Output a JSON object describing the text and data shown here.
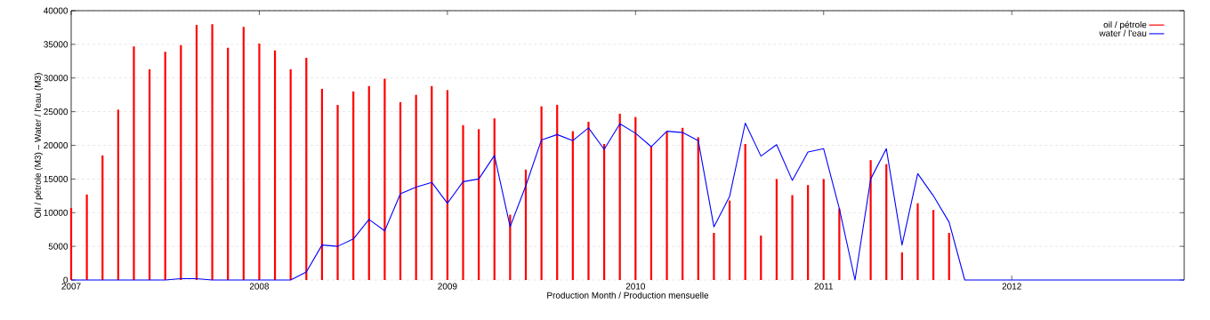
{
  "chart_data": {
    "type": "bar",
    "xlabel": "Production Month / Production mensuelle",
    "ylabel": "Oil / pétrole (M3)  –  Water / l'eau (M3)",
    "x": [
      "2007-01",
      "2007-02",
      "2007-03",
      "2007-04",
      "2007-05",
      "2007-06",
      "2007-07",
      "2007-08",
      "2007-09",
      "2007-10",
      "2007-11",
      "2007-12",
      "2008-01",
      "2008-02",
      "2008-03",
      "2008-04",
      "2008-05",
      "2008-06",
      "2008-07",
      "2008-08",
      "2008-09",
      "2008-10",
      "2008-11",
      "2008-12",
      "2009-01",
      "2009-02",
      "2009-03",
      "2009-04",
      "2009-05",
      "2009-06",
      "2009-07",
      "2009-08",
      "2009-09",
      "2009-10",
      "2009-11",
      "2009-12",
      "2010-01",
      "2010-02",
      "2010-03",
      "2010-04",
      "2010-05",
      "2010-06",
      "2010-07",
      "2010-08",
      "2010-09",
      "2010-10",
      "2010-11",
      "2010-12",
      "2011-01",
      "2011-02",
      "2011-03",
      "2011-04",
      "2011-05",
      "2011-06",
      "2011-07",
      "2011-08",
      "2011-09",
      "2011-10",
      "2011-11",
      "2011-12",
      "2012-01",
      "2012-02",
      "2012-03",
      "2012-04",
      "2012-05",
      "2012-06",
      "2012-07",
      "2012-08",
      "2012-09",
      "2012-10",
      "2012-11",
      "2012-12"
    ],
    "series": [
      {
        "name": "oil / pétrole",
        "color": "#ff0000",
        "x": [
          "2007-01",
          "2007-02",
          "2007-03",
          "2007-04",
          "2007-05",
          "2007-06",
          "2007-07",
          "2007-08",
          "2007-09",
          "2007-10",
          "2007-11",
          "2007-12",
          "2008-01",
          "2008-02",
          "2008-03",
          "2008-04",
          "2008-05",
          "2008-06",
          "2008-07",
          "2008-08",
          "2008-09",
          "2008-10",
          "2008-11",
          "2008-12",
          "2009-01",
          "2009-02",
          "2009-03",
          "2009-04",
          "2009-05",
          "2009-06",
          "2009-07",
          "2009-08",
          "2009-09",
          "2009-10",
          "2009-11",
          "2009-12",
          "2010-01",
          "2010-02",
          "2010-03",
          "2010-04",
          "2010-05",
          "2010-06",
          "2010-07",
          "2010-08",
          "2010-09",
          "2010-10",
          "2010-11",
          "2010-12",
          "2011-01",
          "2011-02",
          "2011-03",
          "2011-04",
          "2011-05",
          "2011-06",
          "2011-07",
          "2011-08",
          "2011-09"
        ],
        "values": [
          10700,
          12700,
          18500,
          25300,
          34700,
          31300,
          33900,
          34900,
          37900,
          38000,
          34500,
          37600,
          35100,
          34100,
          31300,
          33000,
          28400,
          26000,
          28000,
          28800,
          29900,
          26400,
          27500,
          28800,
          28200,
          23000,
          22400,
          24000,
          9700,
          16400,
          25800,
          26000,
          22100,
          23500,
          20200,
          24700,
          24200,
          19800,
          22000,
          22600,
          21200,
          7000,
          11800,
          20200,
          6600,
          15000,
          12600,
          14100,
          15000,
          10600,
          0,
          17800,
          17200,
          4100,
          11400,
          10400,
          7000
        ]
      },
      {
        "name": "water / l'eau",
        "type": "line",
        "color": "#0000ff",
        "values": [
          0,
          0,
          0,
          0,
          0,
          0,
          0,
          200,
          200,
          0,
          0,
          0,
          0,
          0,
          0,
          1200,
          5200,
          5000,
          6100,
          9000,
          7300,
          12800,
          13800,
          14500,
          11400,
          14600,
          15000,
          18500,
          7900,
          14000,
          20800,
          21600,
          20700,
          22600,
          19400,
          23200,
          21800,
          19800,
          22100,
          21900,
          20700,
          7900,
          12400,
          23300,
          18400,
          20100,
          14800,
          19000,
          19500,
          10600,
          0,
          15000,
          19500,
          5200,
          15800,
          12500,
          8600,
          0,
          0,
          0,
          0,
          0,
          0,
          0,
          0,
          0,
          0,
          0,
          0,
          0,
          0,
          0
        ]
      }
    ],
    "xlim": [
      "2007-01",
      "2012-12"
    ],
    "xticks": [
      "2007",
      "2008",
      "2009",
      "2010",
      "2011",
      "2012"
    ],
    "ylim": [
      0,
      40000
    ],
    "yticks": [
      0,
      5000,
      10000,
      15000,
      20000,
      25000,
      30000,
      35000,
      40000
    ],
    "grid": "y",
    "legend": "top right"
  }
}
